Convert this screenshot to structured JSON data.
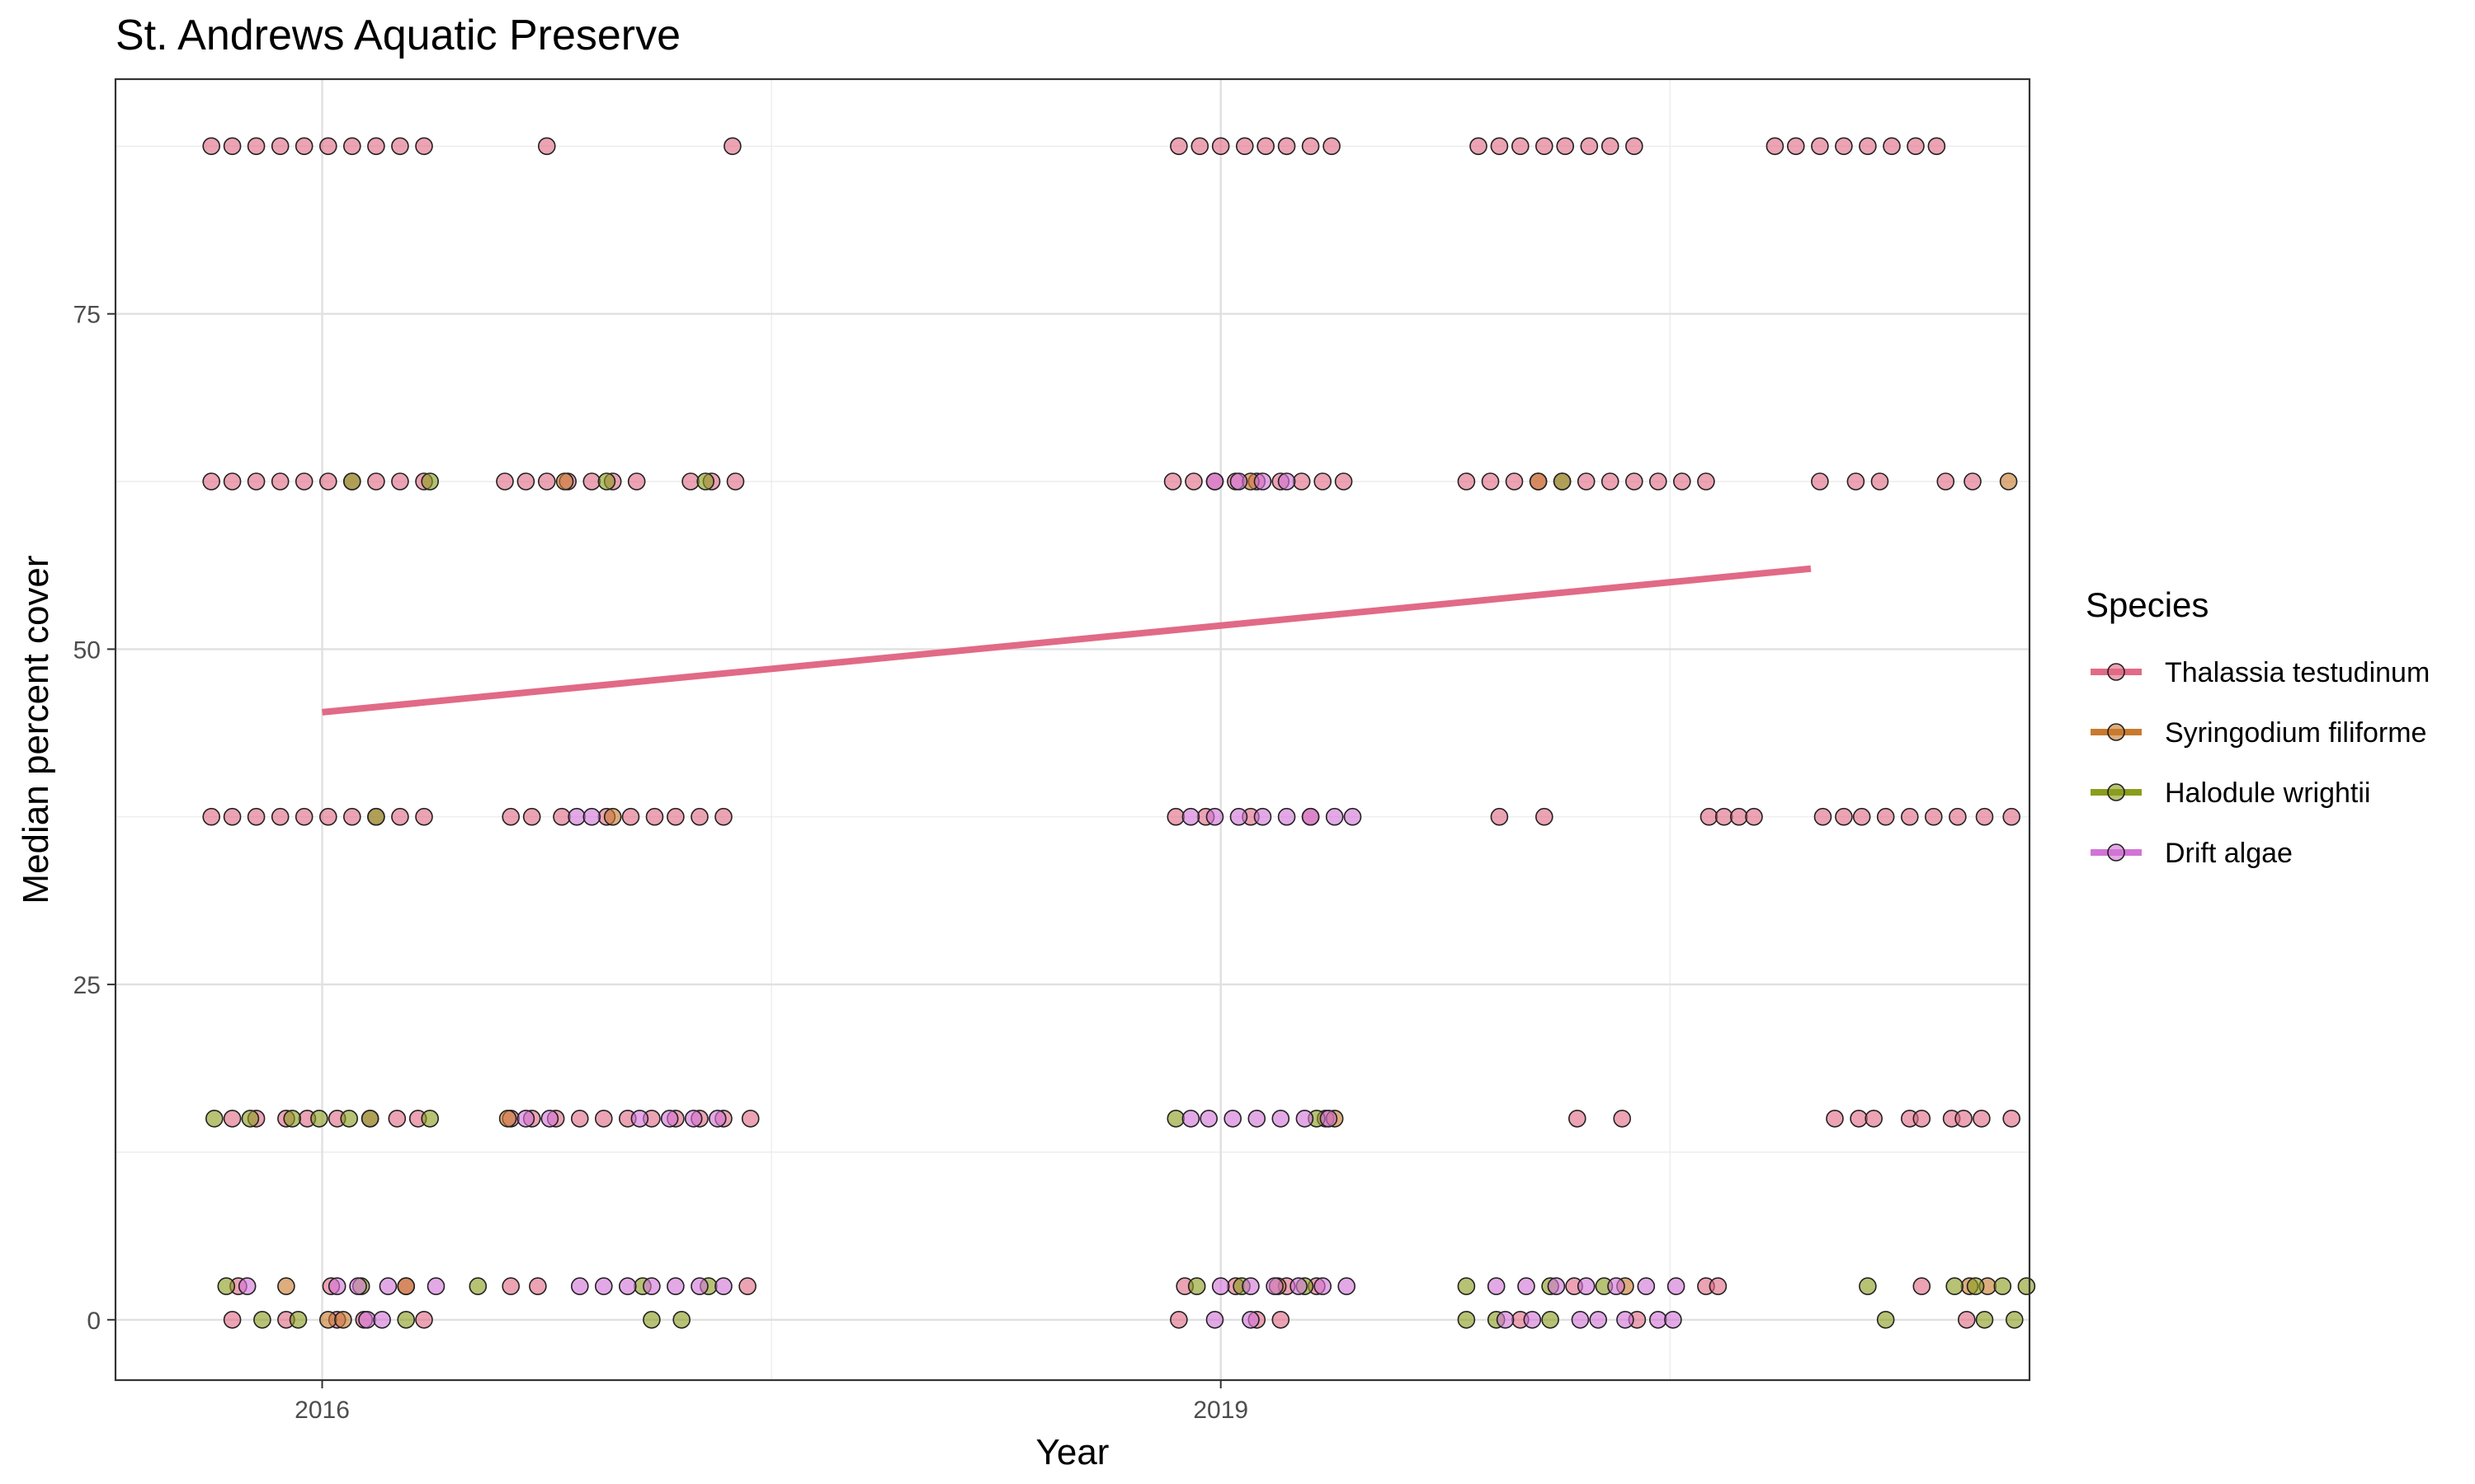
{
  "chart_data": {
    "type": "scatter",
    "title": "St. Andrews Aquatic Preserve",
    "xlabel": "Year",
    "ylabel": "Median percent cover",
    "x_ticks": [
      2016,
      2019
    ],
    "y_ticks": [
      0,
      25,
      50,
      75
    ],
    "xlim": [
      2015.31,
      2021.7
    ],
    "ylim": [
      -4.5,
      92.5
    ],
    "grid": true,
    "legend": {
      "title": "Species",
      "position": "right"
    },
    "series": [
      {
        "name": "Thalassia testudinum",
        "color": "#E16A86",
        "points": [
          [
            2015.63,
            87.5
          ],
          [
            2015.7,
            87.5
          ],
          [
            2015.78,
            87.5
          ],
          [
            2015.86,
            87.5
          ],
          [
            2015.94,
            87.5
          ],
          [
            2016.02,
            87.5
          ],
          [
            2016.1,
            87.5
          ],
          [
            2016.18,
            87.5
          ],
          [
            2016.26,
            87.5
          ],
          [
            2016.34,
            87.5
          ],
          [
            2016.75,
            87.5
          ],
          [
            2017.37,
            87.5
          ],
          [
            2018.86,
            87.5
          ],
          [
            2018.93,
            87.5
          ],
          [
            2019.0,
            87.5
          ],
          [
            2019.08,
            87.5
          ],
          [
            2019.15,
            87.5
          ],
          [
            2019.22,
            87.5
          ],
          [
            2019.3,
            87.5
          ],
          [
            2019.37,
            87.5
          ],
          [
            2019.86,
            87.5
          ],
          [
            2019.93,
            87.5
          ],
          [
            2020.0,
            87.5
          ],
          [
            2020.08,
            87.5
          ],
          [
            2020.15,
            87.5
          ],
          [
            2020.23,
            87.5
          ],
          [
            2020.3,
            87.5
          ],
          [
            2020.38,
            87.5
          ],
          [
            2020.85,
            87.5
          ],
          [
            2020.92,
            87.5
          ],
          [
            2021.0,
            87.5
          ],
          [
            2021.08,
            87.5
          ],
          [
            2021.16,
            87.5
          ],
          [
            2021.24,
            87.5
          ],
          [
            2021.32,
            87.5
          ],
          [
            2021.39,
            87.5
          ],
          [
            2015.63,
            62.5
          ],
          [
            2015.7,
            62.5
          ],
          [
            2015.78,
            62.5
          ],
          [
            2015.86,
            62.5
          ],
          [
            2015.94,
            62.5
          ],
          [
            2016.02,
            62.5
          ],
          [
            2016.1,
            62.5
          ],
          [
            2016.18,
            62.5
          ],
          [
            2016.26,
            62.5
          ],
          [
            2016.34,
            62.5
          ],
          [
            2016.61,
            62.5
          ],
          [
            2016.68,
            62.5
          ],
          [
            2016.75,
            62.5
          ],
          [
            2016.82,
            62.5
          ],
          [
            2016.9,
            62.5
          ],
          [
            2016.97,
            62.5
          ],
          [
            2017.05,
            62.5
          ],
          [
            2017.23,
            62.5
          ],
          [
            2017.3,
            62.5
          ],
          [
            2017.38,
            62.5
          ],
          [
            2018.84,
            62.5
          ],
          [
            2018.91,
            62.5
          ],
          [
            2018.98,
            62.5
          ],
          [
            2019.05,
            62.5
          ],
          [
            2019.12,
            62.5
          ],
          [
            2019.2,
            62.5
          ],
          [
            2019.27,
            62.5
          ],
          [
            2019.34,
            62.5
          ],
          [
            2019.41,
            62.5
          ],
          [
            2019.82,
            62.5
          ],
          [
            2019.9,
            62.5
          ],
          [
            2019.98,
            62.5
          ],
          [
            2020.06,
            62.5
          ],
          [
            2020.14,
            62.5
          ],
          [
            2020.22,
            62.5
          ],
          [
            2020.3,
            62.5
          ],
          [
            2020.38,
            62.5
          ],
          [
            2020.46,
            62.5
          ],
          [
            2020.54,
            62.5
          ],
          [
            2020.62,
            62.5
          ],
          [
            2021.0,
            62.5
          ],
          [
            2021.12,
            62.5
          ],
          [
            2021.2,
            62.5
          ],
          [
            2021.42,
            62.5
          ],
          [
            2021.51,
            62.5
          ],
          [
            2015.63,
            37.5
          ],
          [
            2015.7,
            37.5
          ],
          [
            2015.78,
            37.5
          ],
          [
            2015.86,
            37.5
          ],
          [
            2015.94,
            37.5
          ],
          [
            2016.02,
            37.5
          ],
          [
            2016.1,
            37.5
          ],
          [
            2016.18,
            37.5
          ],
          [
            2016.26,
            37.5
          ],
          [
            2016.34,
            37.5
          ],
          [
            2016.63,
            37.5
          ],
          [
            2016.7,
            37.5
          ],
          [
            2016.8,
            37.5
          ],
          [
            2016.95,
            37.5
          ],
          [
            2017.03,
            37.5
          ],
          [
            2017.11,
            37.5
          ],
          [
            2017.18,
            37.5
          ],
          [
            2017.26,
            37.5
          ],
          [
            2017.34,
            37.5
          ],
          [
            2018.85,
            37.5
          ],
          [
            2018.95,
            37.5
          ],
          [
            2019.1,
            37.5
          ],
          [
            2019.3,
            37.5
          ],
          [
            2019.93,
            37.5
          ],
          [
            2020.08,
            37.5
          ],
          [
            2020.63,
            37.5
          ],
          [
            2020.68,
            37.5
          ],
          [
            2020.73,
            37.5
          ],
          [
            2020.78,
            37.5
          ],
          [
            2021.01,
            37.5
          ],
          [
            2021.08,
            37.5
          ],
          [
            2021.14,
            37.5
          ],
          [
            2021.22,
            37.5
          ],
          [
            2021.3,
            37.5
          ],
          [
            2021.38,
            37.5
          ],
          [
            2021.46,
            37.5
          ],
          [
            2021.55,
            37.5
          ],
          [
            2021.64,
            37.5
          ],
          [
            2015.7,
            15
          ],
          [
            2015.78,
            15
          ],
          [
            2015.88,
            15
          ],
          [
            2015.95,
            15
          ],
          [
            2016.05,
            15
          ],
          [
            2016.16,
            15
          ],
          [
            2016.25,
            15
          ],
          [
            2016.32,
            15
          ],
          [
            2016.63,
            15
          ],
          [
            2016.7,
            15
          ],
          [
            2016.78,
            15
          ],
          [
            2016.86,
            15
          ],
          [
            2016.94,
            15
          ],
          [
            2017.02,
            15
          ],
          [
            2017.1,
            15
          ],
          [
            2017.18,
            15
          ],
          [
            2017.26,
            15
          ],
          [
            2017.34,
            15
          ],
          [
            2017.43,
            15
          ],
          [
            2019.35,
            15
          ],
          [
            2020.19,
            15
          ],
          [
            2020.34,
            15
          ],
          [
            2021.05,
            15
          ],
          [
            2021.13,
            15
          ],
          [
            2021.18,
            15
          ],
          [
            2021.3,
            15
          ],
          [
            2021.34,
            15
          ],
          [
            2021.44,
            15
          ],
          [
            2021.48,
            15
          ],
          [
            2021.54,
            15
          ],
          [
            2021.64,
            15
          ],
          [
            2015.72,
            2.5
          ],
          [
            2016.03,
            2.5
          ],
          [
            2016.28,
            2.5
          ],
          [
            2016.63,
            2.5
          ],
          [
            2016.72,
            2.5
          ],
          [
            2017.42,
            2.5
          ],
          [
            2018.88,
            2.5
          ],
          [
            2019.05,
            2.5
          ],
          [
            2019.22,
            2.5
          ],
          [
            2019.32,
            2.5
          ],
          [
            2020.18,
            2.5
          ],
          [
            2020.62,
            2.5
          ],
          [
            2020.66,
            2.5
          ],
          [
            2021.34,
            2.5
          ],
          [
            2015.7,
            0
          ],
          [
            2015.88,
            0
          ],
          [
            2016.05,
            0
          ],
          [
            2016.14,
            0
          ],
          [
            2016.34,
            0
          ],
          [
            2018.86,
            0
          ],
          [
            2019.12,
            0
          ],
          [
            2019.2,
            0
          ],
          [
            2020.0,
            0
          ],
          [
            2020.39,
            0
          ],
          [
            2021.49,
            0
          ]
        ]
      },
      {
        "name": "Syringodium filiforme",
        "color": "#C87A2F",
        "points": [
          [
            2015.88,
            2.5
          ],
          [
            2016.28,
            2.5
          ],
          [
            2016.02,
            0
          ],
          [
            2016.07,
            0
          ],
          [
            2016.62,
            15
          ],
          [
            2016.81,
            62.5
          ],
          [
            2016.97,
            37.5
          ],
          [
            2019.19,
            2.5
          ],
          [
            2019.38,
            15
          ],
          [
            2020.35,
            2.5
          ],
          [
            2021.5,
            2.5
          ],
          [
            2021.56,
            2.5
          ],
          [
            2021.63,
            62.5
          ],
          [
            2020.06,
            62.5
          ],
          [
            2019.1,
            62.5
          ]
        ]
      },
      {
        "name": "Halodule wrightii",
        "color": "#8A9D1E",
        "points": [
          [
            2015.64,
            15
          ],
          [
            2015.76,
            15
          ],
          [
            2015.9,
            15
          ],
          [
            2015.99,
            15
          ],
          [
            2016.09,
            15
          ],
          [
            2016.16,
            15
          ],
          [
            2016.36,
            15
          ],
          [
            2016.18,
            37.5
          ],
          [
            2016.1,
            62.5
          ],
          [
            2016.36,
            62.5
          ],
          [
            2015.68,
            2.5
          ],
          [
            2016.13,
            2.5
          ],
          [
            2016.52,
            2.5
          ],
          [
            2017.07,
            2.5
          ],
          [
            2017.29,
            2.5
          ],
          [
            2015.8,
            0
          ],
          [
            2015.92,
            0
          ],
          [
            2016.28,
            0
          ],
          [
            2017.1,
            0
          ],
          [
            2017.2,
            0
          ],
          [
            2016.95,
            62.5
          ],
          [
            2017.28,
            62.5
          ],
          [
            2018.85,
            15
          ],
          [
            2019.32,
            15
          ],
          [
            2018.92,
            2.5
          ],
          [
            2019.07,
            2.5
          ],
          [
            2019.28,
            2.5
          ],
          [
            2019.82,
            2.5
          ],
          [
            2020.1,
            2.5
          ],
          [
            2020.28,
            2.5
          ],
          [
            2019.82,
            0
          ],
          [
            2019.92,
            0
          ],
          [
            2020.1,
            0
          ],
          [
            2020.14,
            62.5
          ],
          [
            2021.16,
            2.5
          ],
          [
            2021.45,
            2.5
          ],
          [
            2021.52,
            2.5
          ],
          [
            2021.61,
            2.5
          ],
          [
            2021.69,
            2.5
          ],
          [
            2021.22,
            0
          ],
          [
            2021.55,
            0
          ],
          [
            2021.65,
            0
          ]
        ]
      },
      {
        "name": "Drift algae",
        "color": "#D274D6",
        "points": [
          [
            2015.75,
            2.5
          ],
          [
            2016.05,
            2.5
          ],
          [
            2016.12,
            2.5
          ],
          [
            2016.22,
            2.5
          ],
          [
            2016.38,
            2.5
          ],
          [
            2016.86,
            2.5
          ],
          [
            2016.94,
            2.5
          ],
          [
            2017.02,
            2.5
          ],
          [
            2017.1,
            2.5
          ],
          [
            2017.18,
            2.5
          ],
          [
            2017.26,
            2.5
          ],
          [
            2017.34,
            2.5
          ],
          [
            2016.15,
            0
          ],
          [
            2016.2,
            0
          ],
          [
            2016.68,
            15
          ],
          [
            2016.76,
            15
          ],
          [
            2017.06,
            15
          ],
          [
            2017.16,
            15
          ],
          [
            2017.24,
            15
          ],
          [
            2017.32,
            15
          ],
          [
            2016.85,
            37.5
          ],
          [
            2016.9,
            37.5
          ],
          [
            2018.9,
            15
          ],
          [
            2018.96,
            15
          ],
          [
            2019.04,
            15
          ],
          [
            2019.12,
            15
          ],
          [
            2019.2,
            15
          ],
          [
            2019.28,
            15
          ],
          [
            2019.36,
            15
          ],
          [
            2018.9,
            37.5
          ],
          [
            2018.98,
            37.5
          ],
          [
            2019.06,
            37.5
          ],
          [
            2019.14,
            37.5
          ],
          [
            2019.22,
            37.5
          ],
          [
            2019.3,
            37.5
          ],
          [
            2019.38,
            37.5
          ],
          [
            2019.44,
            37.5
          ],
          [
            2018.98,
            62.5
          ],
          [
            2019.06,
            62.5
          ],
          [
            2019.14,
            62.5
          ],
          [
            2019.22,
            62.5
          ],
          [
            2019.0,
            2.5
          ],
          [
            2019.1,
            2.5
          ],
          [
            2019.18,
            2.5
          ],
          [
            2019.26,
            2.5
          ],
          [
            2019.34,
            2.5
          ],
          [
            2019.42,
            2.5
          ],
          [
            2018.98,
            0
          ],
          [
            2019.1,
            0
          ],
          [
            2019.92,
            2.5
          ],
          [
            2020.02,
            2.5
          ],
          [
            2020.12,
            2.5
          ],
          [
            2020.22,
            2.5
          ],
          [
            2020.32,
            2.5
          ],
          [
            2020.42,
            2.5
          ],
          [
            2020.52,
            2.5
          ],
          [
            2019.95,
            0
          ],
          [
            2020.04,
            0
          ],
          [
            2020.2,
            0
          ],
          [
            2020.26,
            0
          ],
          [
            2020.35,
            0
          ],
          [
            2020.46,
            0
          ],
          [
            2020.51,
            0
          ]
        ]
      }
    ],
    "trend_line": {
      "series": "Thalassia testudinum",
      "color": "#E16A86",
      "x": [
        2016.0,
        2020.97
      ],
      "y": [
        45.3,
        56.0
      ]
    }
  }
}
